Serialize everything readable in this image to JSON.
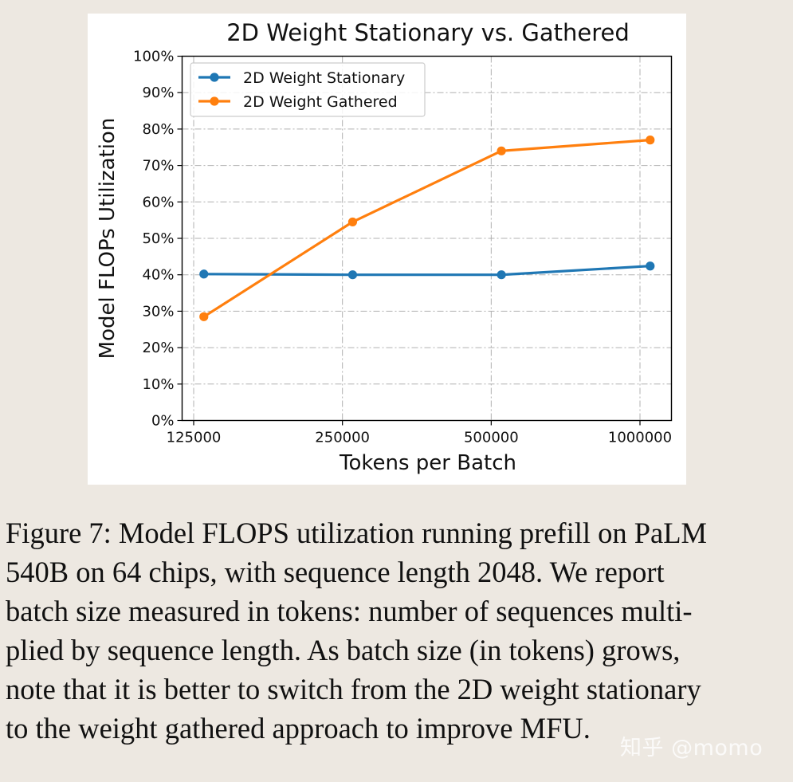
{
  "chart_data": {
    "type": "line",
    "title": "2D Weight Stationary vs. Gathered",
    "xlabel": "Tokens per Batch",
    "ylabel": "Model FLOPs Utilization",
    "x_scale": "log",
    "categories": [
      "125000",
      "250000",
      "500000",
      "1000000"
    ],
    "x": [
      131072,
      262144,
      524288,
      1048576
    ],
    "x_ticks": [
      125000,
      250000,
      500000,
      1000000
    ],
    "x_tick_labels": [
      "125000",
      "250000",
      "500000",
      "1000000"
    ],
    "y_ticks": [
      0,
      10,
      20,
      30,
      40,
      50,
      60,
      70,
      80,
      90,
      100
    ],
    "y_tick_labels": [
      "0%",
      "10%",
      "20%",
      "30%",
      "40%",
      "50%",
      "60%",
      "70%",
      "80%",
      "90%",
      "100%"
    ],
    "ylim": [
      0,
      100
    ],
    "grid": true,
    "legend_position": "top-left",
    "series": [
      {
        "name": "2D Weight Stationary",
        "color": "#1f77b4",
        "values": [
          40.2,
          40.0,
          40.0,
          42.4
        ]
      },
      {
        "name": "2D Weight Gathered",
        "color": "#ff7f0e",
        "values": [
          28.5,
          54.5,
          74.0,
          77.0
        ]
      }
    ]
  },
  "caption": {
    "lines": [
      "Figure 7: Model FLOPS utilization running prefill on PaLM",
      "540B on 64 chips, with sequence length 2048. We report",
      "batch size measured in tokens: number of sequences multi-",
      "plied by sequence length. As batch size (in tokens) grows,",
      "note that it is better to switch from the 2D weight stationary",
      "to the weight gathered approach to improve MFU."
    ]
  },
  "watermark": {
    "text": "知乎 @momo"
  }
}
